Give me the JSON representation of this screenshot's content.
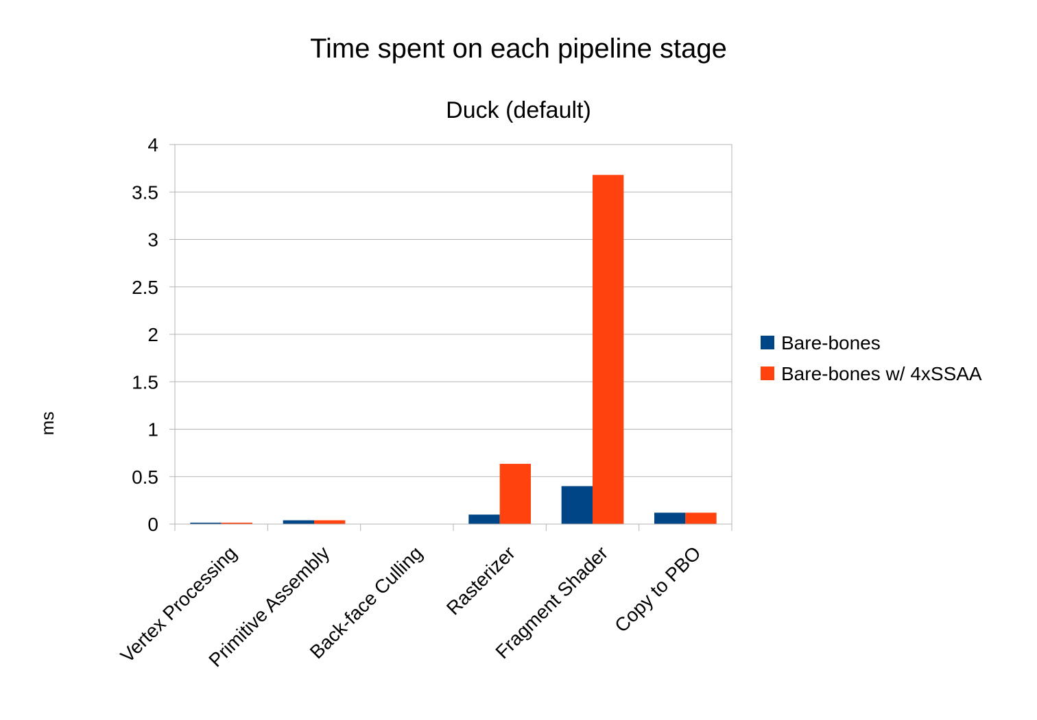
{
  "chart_data": {
    "type": "bar",
    "title": "Time spent on each pipeline stage",
    "subtitle": "Duck (default)",
    "xlabel": "",
    "ylabel": "ms",
    "ylim": [
      0,
      4
    ],
    "yticks": [
      0,
      0.5,
      1,
      1.5,
      2,
      2.5,
      3,
      3.5,
      4
    ],
    "ytick_labels": [
      "0",
      "0.5",
      "1",
      "1.5",
      "2",
      "2.5",
      "3",
      "3.5",
      "4"
    ],
    "grid": true,
    "legend_position": "right",
    "categories": [
      "Vertex Processing",
      "Primitive Assembly",
      "Back-face Culling",
      "Rasterizer",
      "Fragment Shader",
      "Copy to PBO"
    ],
    "series": [
      {
        "name": "Bare-bones",
        "color": "#004586",
        "values": [
          0.015,
          0.04,
          0,
          0.1,
          0.4,
          0.12
        ]
      },
      {
        "name": "Bare-bones w/ 4xSSAA",
        "color": "#ff420e",
        "values": [
          0.015,
          0.04,
          0,
          0.635,
          3.68,
          0.12
        ]
      }
    ]
  }
}
